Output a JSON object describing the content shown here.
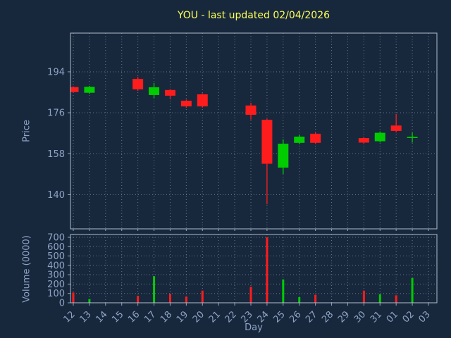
{
  "title": {
    "text": "YOU - last updated 02/04/2026"
  },
  "axes": {
    "price_label": "Price",
    "volume_label": "Volume (0000)",
    "x_label": "Day"
  },
  "colors": {
    "background": "#17283d",
    "up": "#00cc00",
    "down": "#ff1c1c",
    "grid": "#aab8c8",
    "tick": "#8fa3c4",
    "spine": "#c3ccd8",
    "title": "#ffff55"
  },
  "chart_data": {
    "type": "candlestick+volume",
    "x_ticklabels": [
      "12",
      "13",
      "14",
      "15",
      "16",
      "17",
      "18",
      "19",
      "20",
      "21",
      "22",
      "23",
      "24",
      "25",
      "26",
      "27",
      "28",
      "29",
      "30",
      "31",
      "01",
      "02",
      "03"
    ],
    "price_ylim": [
      125,
      211
    ],
    "price_yticks": [
      140,
      158,
      176,
      194
    ],
    "volume_ylim": [
      0,
      730
    ],
    "volume_yticks": [
      0,
      100,
      200,
      300,
      400,
      500,
      600,
      700
    ],
    "candles": [
      {
        "day": "12",
        "open": 187.3,
        "high": 187.6,
        "low": 184.8,
        "close": 185.1
      },
      {
        "day": "13",
        "open": 184.8,
        "high": 187.8,
        "low": 184.3,
        "close": 187.4
      },
      {
        "day": "16",
        "open": 190.9,
        "high": 191.8,
        "low": 185.6,
        "close": 186.3
      },
      {
        "day": "17",
        "open": 183.8,
        "high": 189.1,
        "low": 182.5,
        "close": 187.2
      },
      {
        "day": "18",
        "open": 186.0,
        "high": 186.4,
        "low": 181.9,
        "close": 183.5
      },
      {
        "day": "19",
        "open": 181.3,
        "high": 181.8,
        "low": 178.2,
        "close": 178.8
      },
      {
        "day": "20",
        "open": 184.1,
        "high": 184.5,
        "low": 178.3,
        "close": 178.8
      },
      {
        "day": "23",
        "open": 179.2,
        "high": 180.4,
        "low": 173.0,
        "close": 175.1
      },
      {
        "day": "24",
        "open": 172.9,
        "high": 173.4,
        "low": 135.8,
        "close": 153.6
      },
      {
        "day": "25",
        "open": 151.9,
        "high": 164.3,
        "low": 149.1,
        "close": 162.4
      },
      {
        "day": "26",
        "open": 162.8,
        "high": 166.2,
        "low": 162.2,
        "close": 165.5
      },
      {
        "day": "27",
        "open": 166.8,
        "high": 167.3,
        "low": 162.3,
        "close": 162.8
      },
      {
        "day": "30",
        "open": 164.9,
        "high": 165.4,
        "low": 162.3,
        "close": 162.9
      },
      {
        "day": "31",
        "open": 163.5,
        "high": 167.8,
        "low": 163.0,
        "close": 167.2
      },
      {
        "day": "01",
        "open": 170.4,
        "high": 175.5,
        "low": 167.4,
        "close": 168.0
      },
      {
        "day": "02",
        "open": 165.2,
        "high": 167.3,
        "low": 162.9,
        "close": 165.4
      }
    ],
    "volumes": [
      {
        "day": "12",
        "value": 110
      },
      {
        "day": "13",
        "value": 40
      },
      {
        "day": "16",
        "value": 75
      },
      {
        "day": "17",
        "value": 285
      },
      {
        "day": "18",
        "value": 95
      },
      {
        "day": "19",
        "value": 65
      },
      {
        "day": "20",
        "value": 130
      },
      {
        "day": "23",
        "value": 170
      },
      {
        "day": "24",
        "value": 700
      },
      {
        "day": "25",
        "value": 250
      },
      {
        "day": "26",
        "value": 60
      },
      {
        "day": "27",
        "value": 85
      },
      {
        "day": "30",
        "value": 130
      },
      {
        "day": "31",
        "value": 90
      },
      {
        "day": "01",
        "value": 80
      },
      {
        "day": "02",
        "value": 265
      }
    ]
  }
}
